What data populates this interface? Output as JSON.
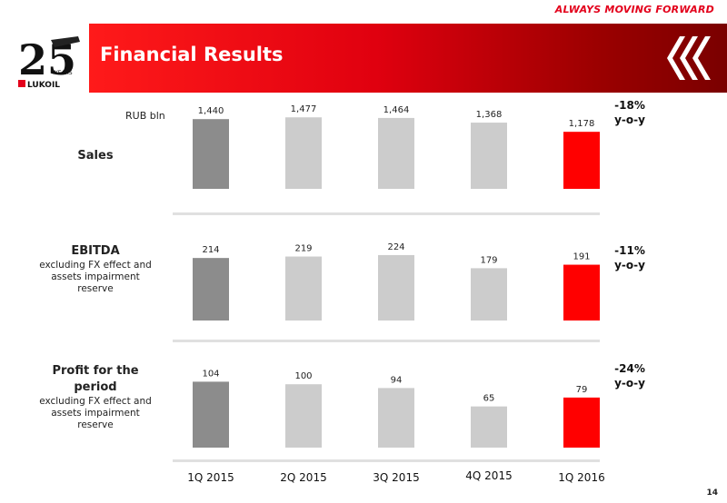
{
  "tagline": "ALWAYS MOVING FORWARD",
  "title": "Financial Results",
  "page_number": "14",
  "logo": {
    "text": "LUKOIL",
    "years_number": "25",
    "years_word": "YEARS"
  },
  "unit": "RUB bln",
  "colors": {
    "first_bar": "#8c8c8c",
    "mid_bar": "#cccccc",
    "last_bar": "#ff0000"
  },
  "rows": [
    {
      "title": "Sales",
      "subtitle": "",
      "change": "-18%",
      "change_note": "y-o-y"
    },
    {
      "title": "EBITDA",
      "subtitle": "excluding FX effect and assets impairment reserve",
      "change": "-11%",
      "change_note": "y-o-y"
    },
    {
      "title": "Profit for the period",
      "subtitle": "excluding FX effect and assets impairment reserve",
      "change": "-24%",
      "change_note": "y-o-y"
    }
  ],
  "chart_data": [
    {
      "type": "bar",
      "categories": [
        "1Q 2015",
        "2Q 2015",
        "3Q 2015",
        "4Q 2015",
        "1Q 2016"
      ],
      "series": [
        {
          "name": "Sales",
          "values": [
            1440,
            1477,
            1464,
            1368,
            1178
          ]
        }
      ],
      "value_labels": [
        "1,440",
        "1,477",
        "1,464",
        "1,368",
        "1,178"
      ],
      "ylabel": "RUB bln",
      "ylim": [
        0,
        1500
      ]
    },
    {
      "type": "bar",
      "categories": [
        "1Q 2015",
        "2Q 2015",
        "3Q 2015",
        "4Q 2015",
        "1Q 2016"
      ],
      "series": [
        {
          "name": "EBITDA",
          "values": [
            214,
            219,
            224,
            179,
            191
          ]
        }
      ],
      "value_labels": [
        "214",
        "219",
        "224",
        "179",
        "191"
      ],
      "ylim": [
        0,
        230
      ]
    },
    {
      "type": "bar",
      "categories": [
        "1Q 2015",
        "2Q 2015",
        "3Q 2015",
        "4Q 2015",
        "1Q 2016"
      ],
      "series": [
        {
          "name": "Profit for the period",
          "values": [
            104,
            100,
            94,
            65,
            79
          ]
        }
      ],
      "value_labels": [
        "104",
        "100",
        "94",
        "65",
        "79"
      ],
      "ylim": [
        0,
        106
      ]
    }
  ]
}
